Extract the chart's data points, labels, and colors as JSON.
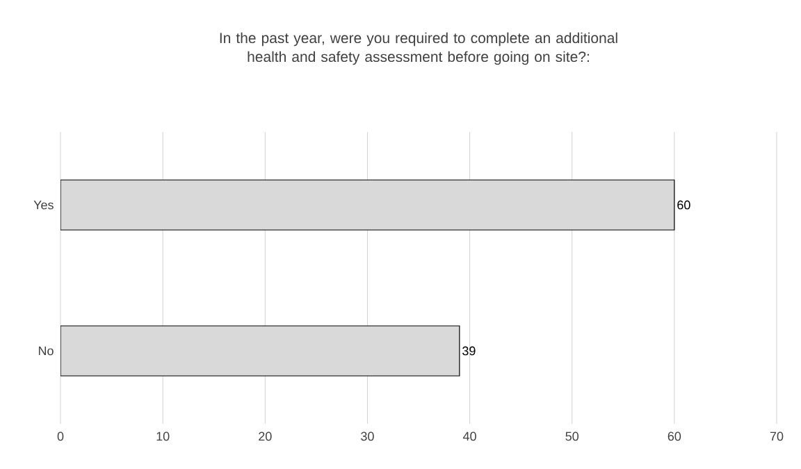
{
  "chart_data": {
    "type": "bar",
    "orientation": "horizontal",
    "title": "In the past year, were you required to complete an additional health and safety assessment before going on site?:",
    "categories": [
      "Yes",
      "No"
    ],
    "values": [
      60,
      39
    ],
    "color": "#d9d9d9",
    "xlim": [
      0,
      70
    ],
    "xticks": [
      0,
      10,
      20,
      30,
      40,
      50,
      60,
      70
    ],
    "grid": "x",
    "data_labels": true
  }
}
